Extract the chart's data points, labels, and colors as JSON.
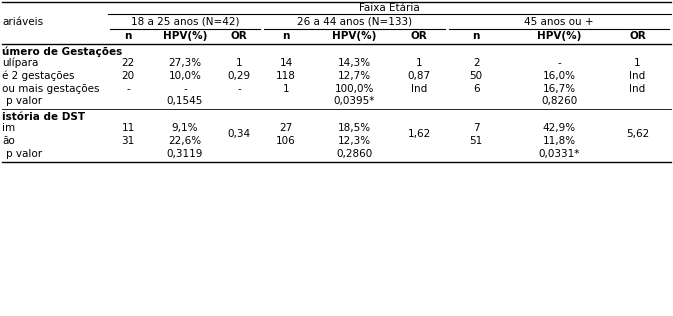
{
  "title": "Faixa Etária",
  "var_label": "ariáveis",
  "group_labels": [
    "18 a 25 anos (N=42)",
    "26 a 44 anos (N=133)",
    "45 anos ou +"
  ],
  "subcol_labels": [
    "n",
    "HPV(%)",
    "OR"
  ],
  "section1_header": "úmero de Gestações",
  "section2_header": "istória de DST",
  "rows_s1": [
    {
      "label": "ulípara",
      "data": [
        "22",
        "27,3%",
        "1",
        "14",
        "14,3%",
        "1",
        "2",
        "-",
        "1"
      ]
    },
    {
      "label": "é 2 gestações",
      "data": [
        "20",
        "10,0%",
        "0,29",
        "118",
        "12,7%",
        "0,87",
        "50",
        "16,0%",
        "Ind"
      ]
    },
    {
      "label": "ou mais gestações",
      "data": [
        "-",
        "-",
        "-",
        "1",
        "100,0%",
        "Ind",
        "6",
        "16,7%",
        "Ind"
      ]
    },
    {
      "label": "p valor",
      "hpv_vals": [
        "0,1545",
        "0,0395*",
        "0,8260"
      ]
    }
  ],
  "rows_s2": [
    {
      "label": "im",
      "data": [
        "11",
        "9,1%",
        "",
        "27",
        "18,5%",
        "",
        "7",
        "42,9%",
        ""
      ]
    },
    {
      "label": "ão",
      "data": [
        "31",
        "22,6%",
        "",
        "106",
        "12,3%",
        "",
        "51",
        "11,8%",
        ""
      ]
    },
    {
      "or_vals": [
        "0,34",
        "1,62",
        "5,62"
      ]
    },
    {
      "label": "p valor",
      "hpv_vals": [
        "0,3119",
        "0,2860",
        "0,0331*"
      ]
    }
  ],
  "bg_color": "#ffffff",
  "line_color": "#000000",
  "fs": 7.5
}
